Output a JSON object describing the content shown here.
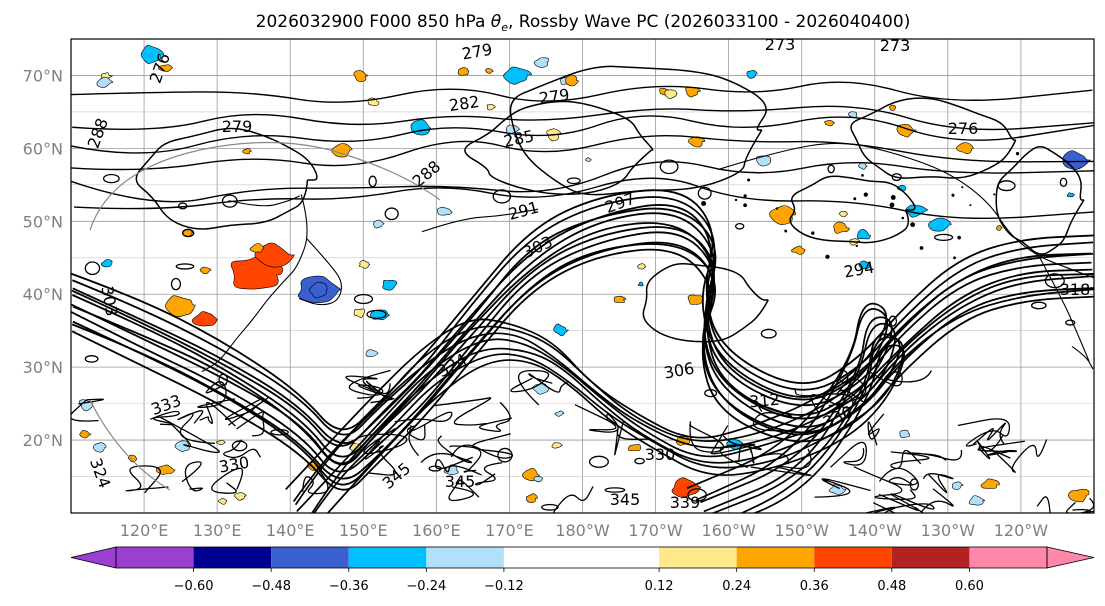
{
  "chart_data": {
    "type": "heatmap",
    "title_parts": {
      "before": "2026032900 F000 850 hPa ",
      "symbol": "θ",
      "subscript": "e",
      "after": ", Rossby Wave PC (2026033100 - 2026040400)"
    },
    "map": {
      "lat_labels": [
        "70°N",
        "60°N",
        "50°N",
        "40°N",
        "30°N",
        "20°N"
      ],
      "lat_values": [
        70,
        60,
        50,
        40,
        30,
        20
      ],
      "lon_labels": [
        "120°E",
        "130°E",
        "140°E",
        "150°E",
        "160°E",
        "170°E",
        "180°W",
        "170°W",
        "160°W",
        "150°W",
        "140°W",
        "130°W",
        "120°W"
      ],
      "lon_values": [
        120,
        130,
        140,
        150,
        160,
        170,
        180,
        190,
        200,
        210,
        220,
        230,
        240
      ],
      "lat_range": [
        10,
        75
      ],
      "lon_range": [
        110,
        250
      ],
      "grid": true
    },
    "contours": {
      "variable": "850 hPa theta-e (K)",
      "labels": [
        "279",
        "273",
        "273",
        "276",
        "282",
        "279",
        "279",
        "288",
        "285",
        "276",
        "288",
        "291",
        "297",
        "303",
        "294",
        "318",
        "303",
        "306",
        "312",
        "324",
        "333",
        "336",
        "330",
        "345",
        "339",
        "345",
        "324",
        "345",
        "330"
      ]
    },
    "colorbar": {
      "ticks": [
        "−0.60",
        "−0.48",
        "−0.36",
        "−0.24",
        "−0.12",
        "0.12",
        "0.24",
        "0.36",
        "0.48",
        "0.60"
      ],
      "bins": [
        {
          "from": null,
          "to": -0.72,
          "color": "#9b3fd1"
        },
        {
          "from": -0.72,
          "to": -0.6,
          "color": "#9b3fd1"
        },
        {
          "from": -0.6,
          "to": -0.48,
          "color": "#000090"
        },
        {
          "from": -0.48,
          "to": -0.36,
          "color": "#3a5fd1"
        },
        {
          "from": -0.36,
          "to": -0.24,
          "color": "#00bfff"
        },
        {
          "from": -0.24,
          "to": -0.12,
          "color": "#b0e0fa"
        },
        {
          "from": -0.12,
          "to": 0.12,
          "color": "#ffffff"
        },
        {
          "from": 0.12,
          "to": 0.24,
          "color": "#ffe98a"
        },
        {
          "from": 0.24,
          "to": 0.36,
          "color": "#ffa500"
        },
        {
          "from": 0.36,
          "to": 0.48,
          "color": "#ff4500"
        },
        {
          "from": 0.48,
          "to": 0.6,
          "color": "#b22222"
        },
        {
          "from": 0.6,
          "to": 0.72,
          "color": "#ff88aa"
        },
        {
          "from": 0.72,
          "to": null,
          "color": "#ff88aa"
        }
      ],
      "extend": "both"
    }
  }
}
